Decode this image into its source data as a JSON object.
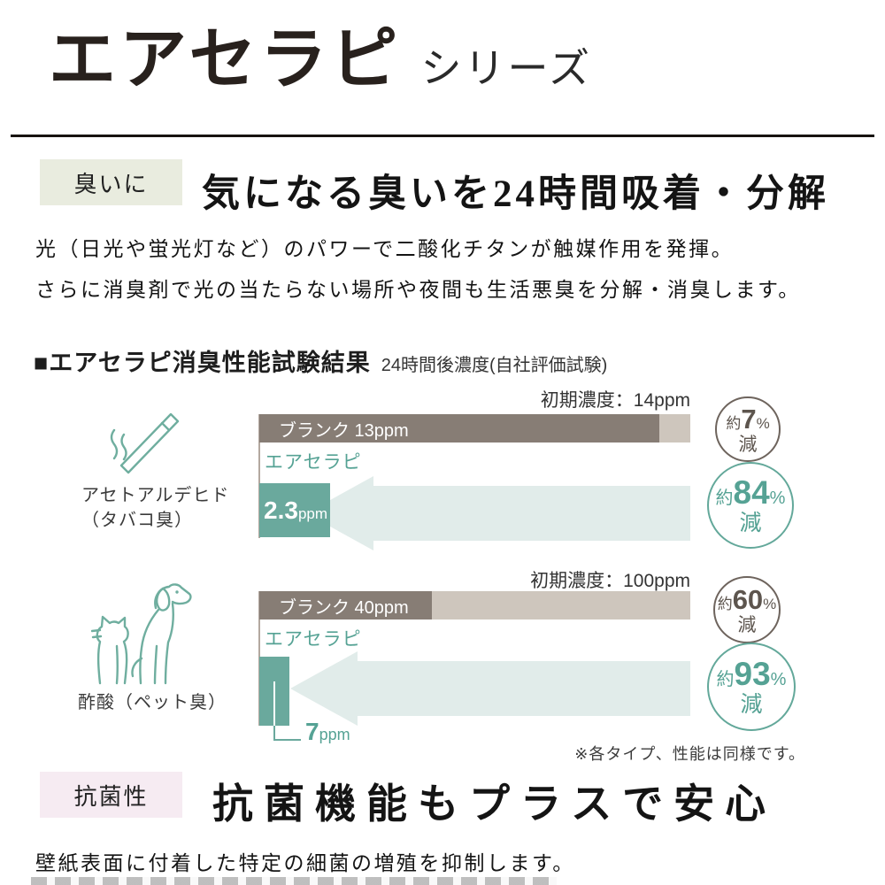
{
  "header": {
    "title": "エアセラピ",
    "series": "シリーズ"
  },
  "odor": {
    "tag": "臭いに",
    "headline": "気になる臭いを24時間吸着・分解",
    "body1": "光（日光や蛍光灯など）のパワーで二酸化チタンが触媒作用を発揮。",
    "body2": "さらに消臭剤で光の当たらない場所や夜間も生活悪臭を分解・消臭します。"
  },
  "results": {
    "title": "■エアセラピ消臭性能試験結果",
    "subtitle": "24時間後濃度(自社評価試験)",
    "note": "※各タイプ、性能は同様です。"
  },
  "chart1": {
    "substance": "アセトアルデヒド",
    "substance_sub": "（タバコ臭）",
    "initial": "初期濃度：14ppm",
    "blank_bar_label": "ブランク 13ppm",
    "product_label": "エアセラピ",
    "value": "2.3",
    "unit": "ppm",
    "r1_prefix": "約",
    "r1_value": "7",
    "r1_pct": "%",
    "r1_word": "減",
    "r2_prefix": "約",
    "r2_value": "84",
    "r2_pct": "%",
    "r2_word": "減"
  },
  "chart2": {
    "substance": "酢酸（ペット臭）",
    "initial": "初期濃度：100ppm",
    "blank_bar_label": "ブランク 40ppm",
    "product_label": "エアセラピ",
    "value": "7",
    "unit": "ppm",
    "r1_prefix": "約",
    "r1_value": "60",
    "r1_pct": "%",
    "r1_word": "減",
    "r2_prefix": "約",
    "r2_value": "93",
    "r2_pct": "%",
    "r2_word": "減"
  },
  "antibacterial": {
    "tag": "抗菌性",
    "headline": "抗菌機能もプラスで安心",
    "body": "壁紙表面に付着した特定の細菌の増殖を抑制します。"
  },
  "icons": {
    "chart1": "cigarette-icon",
    "chart2": "dog-cat-icon"
  },
  "colors": {
    "teal_bar": "#6aa99d",
    "teal_text": "#55a294",
    "blank_bar": "#877d75",
    "blank_bar_remainder": "#cec6bd",
    "arrow": "#e1ecea",
    "odor_tag_bg": "#e9ecdf",
    "antibacterial_tag_bg": "#f6ebf2",
    "reduction_brown": "#6e645d",
    "icon_stroke": "#6fae9f"
  },
  "chart_data": [
    {
      "type": "bar",
      "title": "アセトアルデヒド（タバコ臭）",
      "unit": "ppm",
      "initial_ppm": 14,
      "initial_label": "初期濃度：14ppm",
      "series": [
        {
          "name": "ブランク",
          "value": 13,
          "reduction": "約7%減"
        },
        {
          "name": "エアセラピ",
          "value": 2.3,
          "reduction": "約84%減"
        }
      ],
      "xlim": [
        0,
        14
      ],
      "orientation": "horizontal"
    },
    {
      "type": "bar",
      "title": "酢酸（ペット臭）",
      "unit": "ppm",
      "initial_ppm": 100,
      "initial_label": "初期濃度：100ppm",
      "series": [
        {
          "name": "ブランク",
          "value": 40,
          "reduction": "約60%減"
        },
        {
          "name": "エアセラピ",
          "value": 7,
          "reduction": "約93%減"
        }
      ],
      "xlim": [
        0,
        100
      ],
      "orientation": "horizontal"
    }
  ]
}
